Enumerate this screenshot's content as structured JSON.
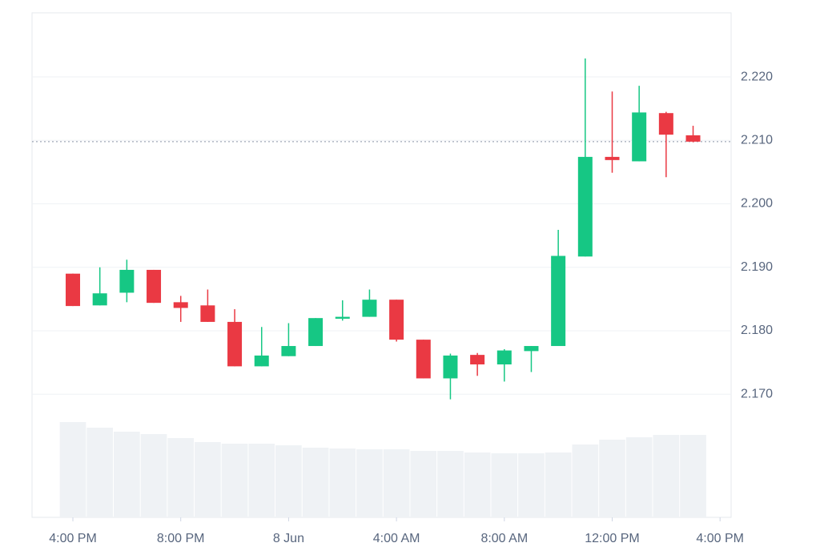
{
  "chart_data": {
    "type": "candlestick",
    "x": [
      0,
      1,
      2,
      3,
      4,
      5,
      6,
      7,
      8,
      9,
      10,
      11,
      12,
      13,
      14,
      15,
      16,
      17,
      18,
      19,
      20,
      21,
      22,
      23
    ],
    "open": [
      2.189,
      2.184,
      2.186,
      2.1896,
      2.1845,
      2.184,
      2.1814,
      2.1744,
      2.176,
      2.1776,
      2.1819,
      2.1822,
      2.1849,
      2.1786,
      2.1725,
      2.1762,
      2.1747,
      2.1768,
      2.1776,
      2.1917,
      2.2074,
      2.2067,
      2.2143,
      2.2108
    ],
    "high": [
      2.189,
      2.19,
      2.1912,
      2.1896,
      2.1855,
      2.1865,
      2.1834,
      2.1806,
      2.1812,
      2.182,
      2.1848,
      2.1865,
      2.1849,
      2.1786,
      2.1764,
      2.1765,
      2.1771,
      2.1776,
      2.1959,
      2.2229,
      2.2177,
      2.2186,
      2.2145,
      2.2123
    ],
    "low": [
      2.1839,
      2.184,
      2.1845,
      2.1844,
      2.1814,
      2.1814,
      2.1744,
      2.1744,
      2.176,
      2.1776,
      2.1816,
      2.1822,
      2.1783,
      2.1725,
      2.1692,
      2.1729,
      2.172,
      2.1735,
      2.1776,
      2.1917,
      2.2049,
      2.2067,
      2.2042,
      2.2097
    ],
    "close": [
      2.1839,
      2.1859,
      2.1896,
      2.1844,
      2.1836,
      2.1814,
      2.1744,
      2.1761,
      2.1776,
      2.182,
      2.1822,
      2.1849,
      2.1786,
      2.1725,
      2.1761,
      2.1747,
      2.1769,
      2.1776,
      2.1918,
      2.2074,
      2.2069,
      2.2144,
      2.2109,
      2.2098
    ],
    "volume": [
      119,
      112,
      107,
      104,
      99,
      94,
      92,
      92,
      90,
      87,
      86,
      85,
      85,
      83,
      83,
      81,
      80,
      80,
      81,
      91,
      97,
      100,
      103,
      103
    ],
    "up_color": "#16c784",
    "down_color": "#ea3943",
    "volume_color": "#eff2f5",
    "price_line": 2.2098,
    "xlim": [
      -1.515,
      24.41
    ],
    "xticks": [
      {
        "value": 0,
        "label": "4:00 PM"
      },
      {
        "value": 4,
        "label": "8:00 PM"
      },
      {
        "value": 8,
        "label": "8 Jun"
      },
      {
        "value": 12,
        "label": "4:00 AM"
      },
      {
        "value": 16,
        "label": "8:00 AM"
      },
      {
        "value": 20,
        "label": "12:00 PM"
      },
      {
        "value": 24,
        "label": "4:00 PM"
      }
    ],
    "ylim": [
      2.1506,
      2.2301
    ],
    "yticks": [
      {
        "value": 2.17,
        "label": "2.170"
      },
      {
        "value": 2.18,
        "label": "2.180"
      },
      {
        "value": 2.19,
        "label": "2.190"
      },
      {
        "value": 2.2,
        "label": "2.200"
      },
      {
        "value": 2.21,
        "label": "2.210"
      },
      {
        "value": 2.22,
        "label": "2.220"
      }
    ],
    "grid": true
  }
}
